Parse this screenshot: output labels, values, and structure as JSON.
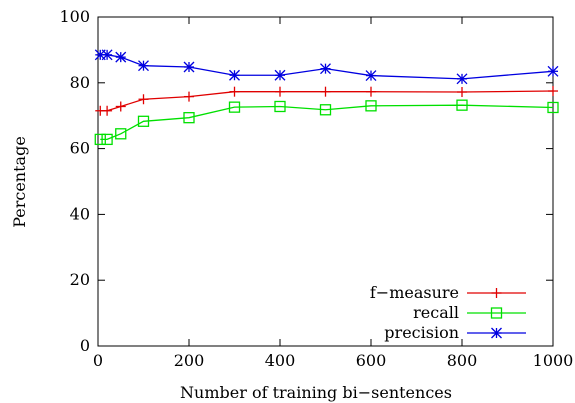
{
  "chart_data": {
    "type": "line",
    "xlabel": "Number of training bi−sentences",
    "ylabel": "Percentage",
    "xlim": [
      0,
      1000
    ],
    "ylim": [
      0,
      100
    ],
    "x_ticks": [
      "0",
      "200",
      "400",
      "600",
      "800",
      "1000"
    ],
    "y_ticks": [
      "0",
      "20",
      "40",
      "60",
      "80",
      "100"
    ],
    "grid": false,
    "legend_position": "bottom-right",
    "series": [
      {
        "name": "f−measure",
        "color": "#e00000",
        "marker": "plus",
        "x": [
          5,
          20,
          50,
          100,
          200,
          300,
          400,
          500,
          600,
          800,
          1000
        ],
        "y": [
          71.5,
          71.5,
          72.8,
          75.0,
          75.8,
          77.3,
          77.3,
          77.3,
          77.3,
          77.2,
          77.5
        ]
      },
      {
        "name": "recall",
        "color": "#00e000",
        "marker": "square",
        "x": [
          5,
          20,
          50,
          100,
          200,
          300,
          400,
          500,
          600,
          800,
          1000
        ],
        "y": [
          62.8,
          62.8,
          64.5,
          68.3,
          69.4,
          72.6,
          72.8,
          71.8,
          73.0,
          73.2,
          72.5
        ]
      },
      {
        "name": "precision",
        "color": "#0000e0",
        "marker": "star",
        "x": [
          5,
          20,
          50,
          100,
          200,
          300,
          400,
          500,
          600,
          800,
          1000
        ],
        "y": [
          88.5,
          88.5,
          87.8,
          85.2,
          84.8,
          82.3,
          82.3,
          84.3,
          82.2,
          81.2,
          83.5
        ]
      }
    ]
  }
}
